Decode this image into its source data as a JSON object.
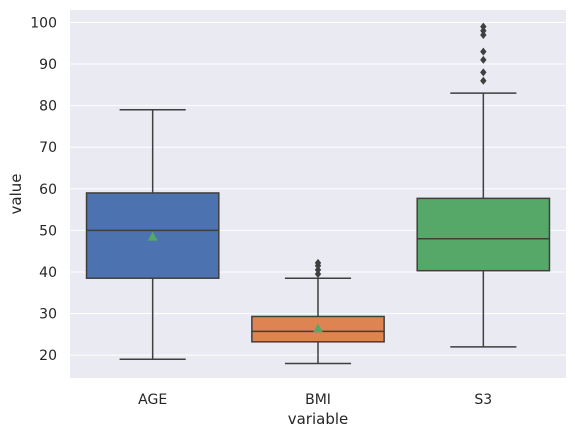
{
  "chart_data": {
    "type": "box",
    "xlabel": "variable",
    "ylabel": "value",
    "ylim": [
      14.5,
      103
    ],
    "yticks": [
      20,
      30,
      40,
      50,
      60,
      70,
      80,
      90,
      100
    ],
    "grid": true,
    "background": "#eaeaf2",
    "mean_marker_color": "#55a868",
    "categories": [
      "AGE",
      "BMI",
      "S3"
    ],
    "boxes": [
      {
        "label": "AGE",
        "color": "#4c72b0",
        "whisker_low": 19,
        "q1": 38.5,
        "median": 50,
        "q3": 59,
        "whisker_high": 79,
        "mean": 48.5,
        "outliers": []
      },
      {
        "label": "BMI",
        "color": "#dd8452",
        "whisker_low": 18,
        "q1": 23.2,
        "median": 25.7,
        "q3": 29.3,
        "whisker_high": 38.5,
        "mean": 26.4,
        "outliers": [
          39.5,
          40.5,
          41.5,
          42.2
        ]
      },
      {
        "label": "S3",
        "color": "#55a868",
        "whisker_low": 22,
        "q1": 40.3,
        "median": 48,
        "q3": 57.7,
        "whisker_high": 83,
        "mean": 49.8,
        "outliers": [
          86,
          88,
          91,
          93,
          97,
          98,
          99
        ]
      }
    ]
  }
}
